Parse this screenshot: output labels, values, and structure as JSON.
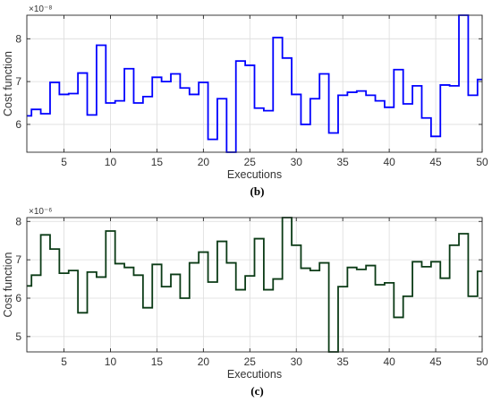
{
  "chart_data": [
    {
      "type": "line",
      "step": true,
      "caption": "(b)",
      "xlabel": "Executions",
      "ylabel": "Cost function",
      "y_exponent": "×10⁻⁸",
      "xlim": [
        1,
        50
      ],
      "ylim": [
        5.35,
        8.55
      ],
      "xticks": [
        5,
        10,
        15,
        20,
        25,
        30,
        35,
        40,
        45,
        50
      ],
      "yticks": [
        6,
        7,
        8
      ],
      "grid": true,
      "color": "#0000ff",
      "x": [
        1,
        2,
        3,
        4,
        5,
        6,
        7,
        8,
        9,
        10,
        11,
        12,
        13,
        14,
        15,
        16,
        17,
        18,
        19,
        20,
        21,
        22,
        23,
        24,
        25,
        26,
        27,
        28,
        29,
        30,
        31,
        32,
        33,
        34,
        35,
        36,
        37,
        38,
        39,
        40,
        41,
        42,
        43,
        44,
        45,
        46,
        47,
        48,
        49,
        50
      ],
      "values": [
        6.2,
        6.35,
        6.25,
        6.98,
        6.7,
        6.72,
        7.2,
        6.22,
        7.85,
        6.5,
        6.55,
        7.3,
        6.5,
        6.65,
        7.1,
        7.0,
        7.18,
        6.85,
        6.7,
        6.98,
        5.65,
        6.6,
        5.35,
        7.48,
        7.38,
        6.38,
        6.32,
        8.03,
        7.55,
        6.7,
        6.0,
        6.6,
        7.18,
        5.8,
        6.68,
        6.75,
        6.78,
        6.68,
        6.55,
        6.4,
        7.28,
        6.48,
        6.9,
        6.15,
        5.72,
        6.92,
        6.9,
        8.55,
        6.68,
        7.05
      ]
    },
    {
      "type": "line",
      "step": true,
      "caption": "(c)",
      "xlabel": "Executions",
      "ylabel": "Cost function",
      "y_exponent": "×10⁻⁶",
      "xlim": [
        1,
        50
      ],
      "ylim": [
        4.6,
        8.1
      ],
      "xticks": [
        5,
        10,
        15,
        20,
        25,
        30,
        35,
        40,
        45,
        50
      ],
      "yticks": [
        5,
        6,
        7,
        8
      ],
      "grid": true,
      "color": "#0b3b16",
      "x": [
        1,
        2,
        3,
        4,
        5,
        6,
        7,
        8,
        9,
        10,
        11,
        12,
        13,
        14,
        15,
        16,
        17,
        18,
        19,
        20,
        21,
        22,
        23,
        24,
        25,
        26,
        27,
        28,
        29,
        30,
        31,
        32,
        33,
        34,
        35,
        36,
        37,
        38,
        39,
        40,
        41,
        42,
        43,
        44,
        45,
        46,
        47,
        48,
        49,
        50
      ],
      "values": [
        6.32,
        6.6,
        7.65,
        7.28,
        6.65,
        6.72,
        5.62,
        6.68,
        6.55,
        7.75,
        6.9,
        6.8,
        6.6,
        5.75,
        6.88,
        6.3,
        6.62,
        6.0,
        6.92,
        7.2,
        6.42,
        7.48,
        6.92,
        6.22,
        6.58,
        7.55,
        6.22,
        6.5,
        8.1,
        7.38,
        6.78,
        6.72,
        6.92,
        4.6,
        6.3,
        6.8,
        6.75,
        6.85,
        6.35,
        6.4,
        5.5,
        6.05,
        6.95,
        6.82,
        6.95,
        6.52,
        7.38,
        7.68,
        6.05,
        6.7
      ]
    }
  ]
}
